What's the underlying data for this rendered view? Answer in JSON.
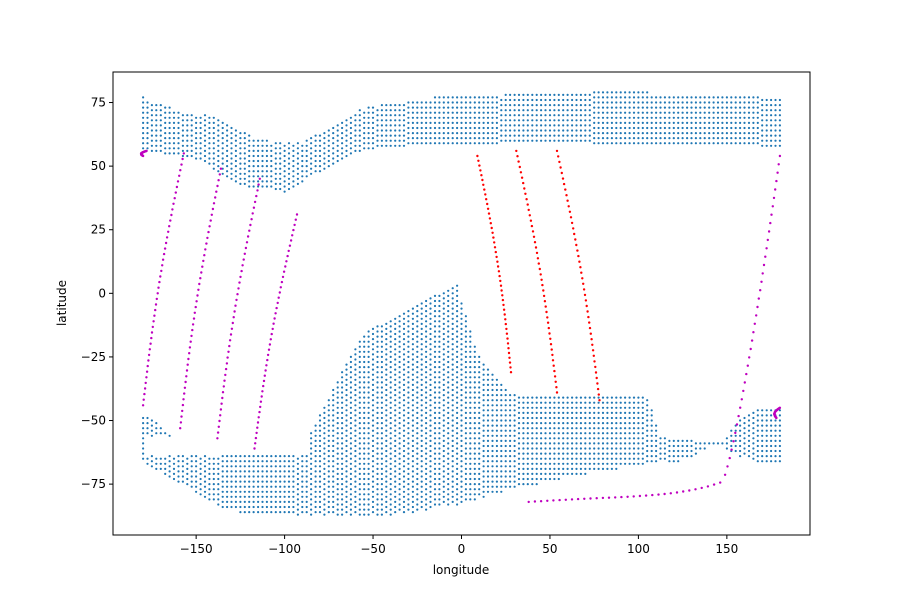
{
  "chart_data": {
    "type": "scatter",
    "xlabel": "longitude",
    "ylabel": "latitude",
    "xlim": [
      -197,
      197
    ],
    "ylim": [
      -95,
      87
    ],
    "xticks": [
      -150,
      -100,
      -50,
      0,
      50,
      100,
      150
    ],
    "yticks": [
      -75,
      -50,
      -25,
      0,
      25,
      50,
      75
    ],
    "xtick_labels": [
      "−150",
      "−100",
      "−50",
      "0",
      "50",
      "100",
      "150"
    ],
    "ytick_labels": [
      "−75",
      "−50",
      "−25",
      "0",
      "25",
      "50",
      "75"
    ],
    "grid": false,
    "colors": {
      "grid_points": "#1f77b4",
      "track_magenta": "#bf00bf",
      "track_red": "#ff0000"
    },
    "grid_point_spacing": {
      "lon": 2.5,
      "lat": 2
    },
    "grid_regions": [
      {
        "lon": [
          -180,
          180
        ],
        "lat_min": [
          57,
          57,
          56,
          56,
          56,
          55,
          55,
          55,
          55,
          54,
          54,
          54,
          53,
          53,
          52,
          51,
          49,
          48,
          47,
          46,
          45,
          44,
          43,
          43,
          42,
          42,
          42,
          42,
          42,
          42,
          41,
          41,
          40,
          40,
          41,
          42,
          43,
          45,
          46,
          47,
          48,
          48,
          49,
          50,
          51,
          52,
          53,
          54,
          55,
          56,
          56,
          57,
          57,
          57,
          58,
          58,
          58,
          58,
          58,
          58,
          58,
          59,
          59,
          59,
          59,
          59,
          59,
          59,
          59,
          59,
          59,
          59,
          59,
          59,
          59,
          59,
          59,
          59,
          59,
          59,
          59,
          59,
          60,
          60,
          60,
          60,
          60,
          60,
          60,
          60,
          60,
          60,
          60,
          60,
          60,
          60,
          60,
          60,
          60,
          60,
          60,
          60,
          59,
          59,
          59,
          59,
          59,
          59,
          59,
          59,
          59,
          59,
          59,
          59,
          59,
          59,
          59,
          59,
          59,
          59,
          59,
          59,
          59,
          59,
          59,
          59,
          59,
          59,
          59,
          59,
          59,
          59,
          59,
          59,
          59,
          59,
          59,
          59,
          59,
          59,
          58,
          58,
          58,
          58,
          58,
          58
        ],
        "lat_max_profile": [
          77,
          75,
          75,
          75,
          75,
          75,
          74,
          73,
          72,
          72,
          71,
          71,
          71,
          70,
          70,
          70,
          69,
          69,
          68,
          68,
          67,
          66,
          65,
          64,
          63,
          62,
          61,
          61,
          60,
          60,
          59,
          59,
          59,
          59,
          59,
          59,
          59,
          60,
          61,
          62,
          63,
          64,
          65,
          66,
          67,
          68,
          69,
          70,
          71,
          72,
          72,
          73,
          73,
          73,
          74,
          74,
          74,
          74,
          74,
          75,
          75,
          76,
          76,
          76,
          76,
          76,
          77,
          77,
          77,
          77,
          77,
          77,
          77,
          77,
          77,
          77,
          77,
          77,
          77,
          77,
          77,
          77,
          78,
          78,
          78,
          78,
          78,
          78,
          78,
          79,
          79,
          79,
          79,
          79,
          79,
          79,
          79,
          79,
          79,
          79,
          79,
          79,
          79,
          79,
          79,
          79,
          79,
          79,
          79,
          79,
          79,
          79,
          79,
          79,
          79,
          79,
          78,
          78,
          78,
          78,
          78,
          78,
          78,
          78,
          78,
          78,
          78,
          78,
          77,
          77,
          77,
          77,
          77,
          77,
          77,
          77,
          77,
          77,
          77,
          77,
          77,
          77,
          77,
          77,
          77,
          77
        ]
      },
      {
        "lon": [
          -180,
          180
        ],
        "lat_top_profile": [
          -49,
          -49,
          -49,
          -50,
          -52,
          -54,
          -55,
          -57,
          -57,
          -58,
          -58,
          -59,
          -60,
          -60,
          -61,
          -62,
          -63,
          -63,
          -63,
          -64,
          -64,
          -64,
          -64,
          -64,
          -64,
          -64,
          -64,
          -64,
          -64,
          -64,
          -64,
          -64,
          -64,
          -64,
          -64,
          -63,
          -62,
          -60,
          -58,
          -55,
          -52,
          -48,
          -45,
          -42,
          -38,
          -35,
          -31,
          -28,
          -25,
          -22,
          -19,
          -17,
          -15,
          -14,
          -13,
          -13,
          -12,
          -11,
          -10,
          -9,
          -8,
          -7,
          -6,
          -5,
          -4,
          -3,
          -2,
          -1,
          -1,
          0,
          1,
          2,
          3,
          3,
          -4,
          -8,
          -14,
          -20,
          -24,
          -27,
          -29,
          -31,
          -33,
          -35,
          -37,
          -39,
          -40,
          -40,
          -41,
          -41,
          -41,
          -41,
          -41,
          -41,
          -41,
          -41,
          -41,
          -41,
          -41,
          -41,
          -41,
          -41,
          -41,
          -41,
          -41,
          -41,
          -41,
          -41,
          -41,
          -41,
          -41,
          -41,
          -41,
          -41,
          -41,
          -41,
          -41,
          -41,
          -44,
          -50,
          -56,
          -57,
          -57,
          -58,
          -58,
          -58,
          -58,
          -58,
          -58,
          -59,
          -59,
          -59,
          -59,
          -59,
          -59,
          -58,
          -56,
          -53,
          -51,
          -49,
          -48,
          -47,
          -46,
          -46,
          -46,
          -46,
          -46,
          -46,
          -46
        ],
        "lat_bottom_profile": [
          -65,
          -67,
          -68,
          -69,
          -70,
          -71,
          -72,
          -73,
          -74,
          -75,
          -76,
          -77,
          -78,
          -79,
          -80,
          -81,
          -82,
          -83,
          -84,
          -84,
          -85,
          -85,
          -86,
          -86,
          -86,
          -87,
          -87,
          -87,
          -87,
          -87,
          -87,
          -87,
          -87,
          -87,
          -87,
          -87,
          -87,
          -87,
          -87,
          -87,
          -87,
          -87,
          -87,
          -87,
          -87,
          -87,
          -87,
          -87,
          -87,
          -87,
          -87,
          -87,
          -87,
          -87,
          -87,
          -87,
          -87,
          -87,
          -87,
          -86,
          -86,
          -86,
          -86,
          -85,
          -85,
          -85,
          -84,
          -84,
          -84,
          -83,
          -83,
          -83,
          -83,
          -82,
          -82,
          -81,
          -81,
          -80,
          -80,
          -79,
          -79,
          -78,
          -78,
          -77,
          -77,
          -77,
          -76,
          -76,
          -76,
          -75,
          -75,
          -74,
          -74,
          -74,
          -73,
          -73,
          -72,
          -72,
          -72,
          -71,
          -71,
          -71,
          -70,
          -70,
          -70,
          -70,
          -69,
          -69,
          -69,
          -68,
          -68,
          -68,
          -67,
          -67,
          -67,
          -67,
          -66,
          -66,
          -66,
          -66,
          -66,
          -66,
          -66,
          -65,
          -65,
          -64,
          -63,
          -62,
          -61,
          -60,
          -60,
          -60,
          -61,
          -62,
          -63,
          -64,
          -64,
          -65,
          -65,
          -66,
          -66,
          -66,
          -66,
          -66,
          -66,
          -66
        ]
      }
    ],
    "tracks": [
      {
        "color": "track_magenta",
        "lon_start": -180,
        "lat_start": -44,
        "lon_end": -157,
        "lat_end": 55
      },
      {
        "color": "track_magenta",
        "lon_start": -180,
        "lat_start": 54,
        "lon_end": -178,
        "lat_end": 56
      },
      {
        "color": "track_magenta",
        "lon_start": -159,
        "lat_start": -53,
        "lon_end": -136,
        "lat_end": 49
      },
      {
        "color": "track_magenta",
        "lon_start": -138,
        "lat_start": -57,
        "lon_end": -114,
        "lat_end": 45
      },
      {
        "color": "track_magenta",
        "lon_start": -117,
        "lat_start": -61,
        "lon_end": -93,
        "lat_end": 31
      },
      {
        "color": "track_red",
        "lon_start": 9,
        "lat_start": 54,
        "lon_end": 28,
        "lat_end": -31
      },
      {
        "color": "track_red",
        "lon_start": 31,
        "lat_start": 56,
        "lon_end": 54,
        "lat_end": -39
      },
      {
        "color": "track_red",
        "lon_start": 54,
        "lat_start": 56,
        "lon_end": 78,
        "lat_end": -42
      },
      {
        "color": "track_magenta",
        "lon_start": 38,
        "lat_start": -82,
        "lon_end": 180,
        "lat_end": 54,
        "shape": "hook"
      },
      {
        "color": "track_magenta",
        "lon_start": 178,
        "lat_start": -49,
        "lon_end": 180,
        "lat_end": -45
      }
    ]
  }
}
